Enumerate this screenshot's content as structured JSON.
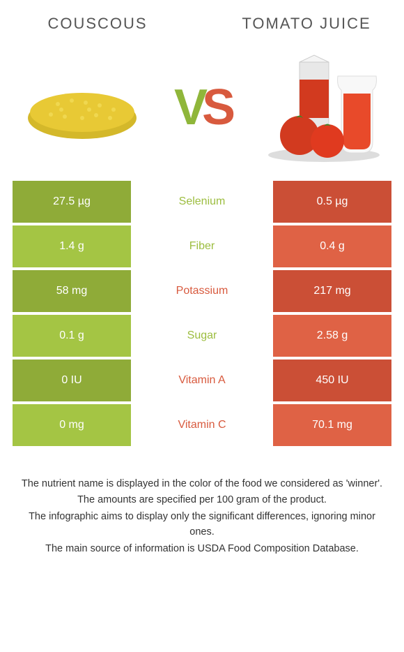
{
  "left_food": {
    "title": "COUSCOUS",
    "color": "#9cbd3f",
    "image_colors": {
      "main": "#e8c935",
      "shadow": "#d4b82a"
    }
  },
  "right_food": {
    "title": "TOMATO JUICE",
    "color": "#d85a3e",
    "image_colors": {
      "tomato": "#d23a1f",
      "juice": "#e84a2a",
      "carton": "#e8e8e8",
      "leaf": "#3a8a2a"
    }
  },
  "vs": {
    "v": "V",
    "s": "S",
    "v_color": "#8fb63a",
    "s_color": "#d85a3e"
  },
  "rows": [
    {
      "nutrient": "Selenium",
      "left": "27.5 µg",
      "right": "0.5 µg",
      "winner": "left"
    },
    {
      "nutrient": "Fiber",
      "left": "1.4 g",
      "right": "0.4 g",
      "winner": "left"
    },
    {
      "nutrient": "Potassium",
      "left": "58 mg",
      "right": "217 mg",
      "winner": "right"
    },
    {
      "nutrient": "Sugar",
      "left": "0.1 g",
      "right": "2.58 g",
      "winner": "left"
    },
    {
      "nutrient": "Vitamin A",
      "left": "0 IU",
      "right": "450 IU",
      "winner": "right"
    },
    {
      "nutrient": "Vitamin C",
      "left": "0 mg",
      "right": "70.1 mg",
      "winner": "right"
    }
  ],
  "shades": {
    "left_dark": "#8fab38",
    "left_light": "#a4c544",
    "right_dark": "#cb4f36",
    "right_light": "#df6245"
  },
  "footer": [
    "The nutrient name is displayed in the color of the food we considered as 'winner'.",
    "The amounts are specified per 100 gram of the product.",
    "The infographic aims to display only the significant differences, ignoring minor ones.",
    "The main source of information is USDA Food Composition Database."
  ]
}
